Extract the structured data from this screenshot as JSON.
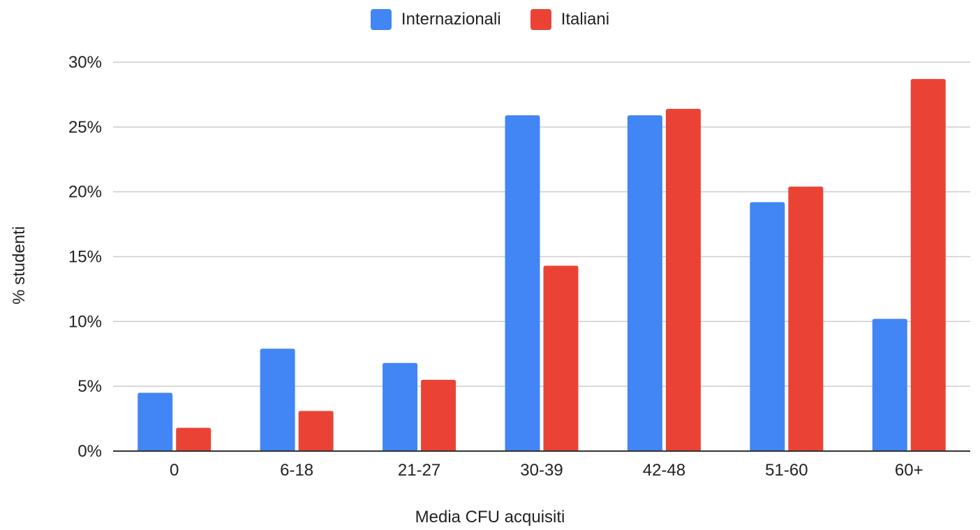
{
  "chart_data": {
    "type": "bar",
    "categories": [
      "0",
      "6-18",
      "21-27",
      "30-39",
      "42-48",
      "51-60",
      "60+"
    ],
    "series": [
      {
        "name": "Internazionali",
        "color": "#4285f4",
        "values": [
          4.5,
          7.9,
          6.8,
          25.9,
          25.9,
          19.2,
          10.2
        ]
      },
      {
        "name": "Italiani",
        "color": "#ea4335",
        "values": [
          1.8,
          3.1,
          5.5,
          14.3,
          26.4,
          20.4,
          28.7
        ]
      }
    ],
    "xlabel": "Media CFU acquisiti",
    "ylabel": "% studenti",
    "ylim": [
      0,
      30
    ],
    "yticks": [
      0,
      5,
      10,
      15,
      20,
      25,
      30
    ],
    "ytick_labels": [
      "0%",
      "5%",
      "10%",
      "15%",
      "20%",
      "25%",
      "30%"
    ],
    "grid": true,
    "legend_position": "top-center"
  }
}
